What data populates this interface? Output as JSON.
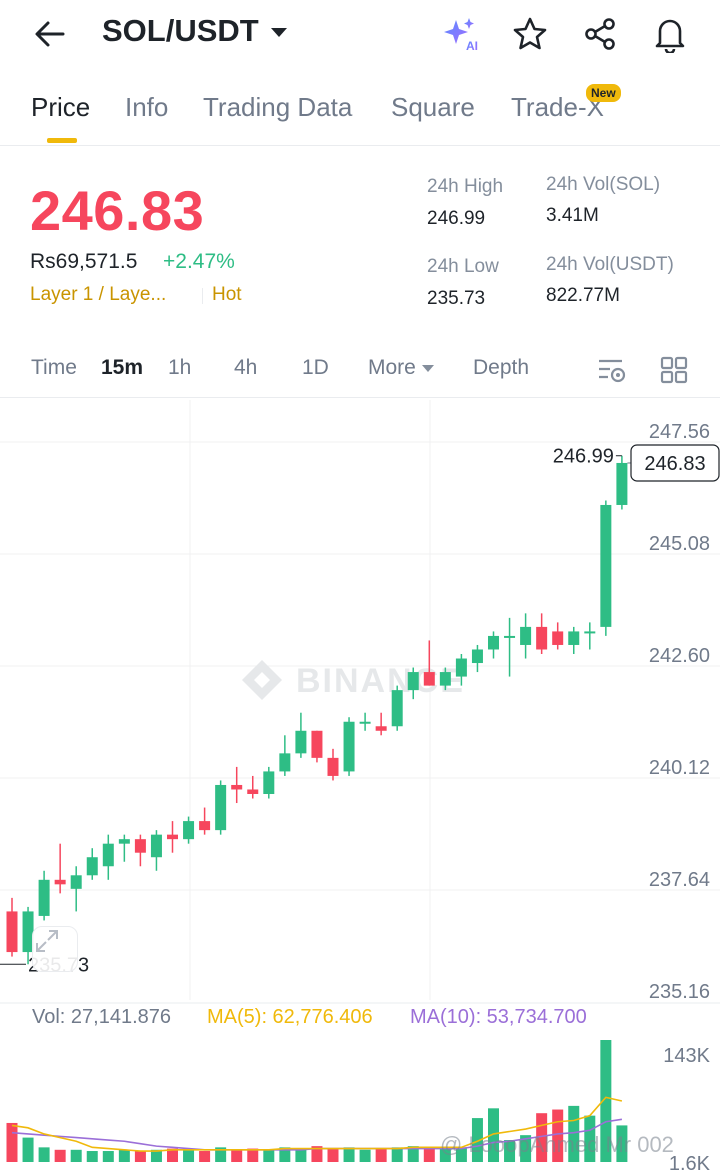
{
  "header": {
    "pair": "SOL/USDT",
    "icons": [
      "back-arrow-icon",
      "ai-sparkle-icon",
      "star-icon",
      "share-icon",
      "bell-icon"
    ]
  },
  "tabs": [
    {
      "label": "Price",
      "active": true
    },
    {
      "label": "Info"
    },
    {
      "label": "Trading Data"
    },
    {
      "label": "Square"
    },
    {
      "label": "Trade-X",
      "badge": "New"
    }
  ],
  "ticker": {
    "last_price": "246.83",
    "fiat_price": "Rs69,571.5",
    "change_pct": "+2.47%",
    "tag": "Layer 1 / Laye...",
    "hot": "Hot",
    "high_label": "24h High",
    "high": "246.99",
    "low_label": "24h Low",
    "low": "235.73",
    "vol_base_label": "24h Vol(SOL)",
    "vol_base": "3.41M",
    "vol_quote_label": "24h Vol(USDT)",
    "vol_quote": "822.77M"
  },
  "intervals": {
    "items": [
      "Time",
      "15m",
      "1h",
      "4h",
      "1D"
    ],
    "active": "15m",
    "more": "More",
    "depth": "Depth"
  },
  "volume_header": {
    "vol": "Vol: 27,141.876",
    "ma5": "MA(5): 62,776.406",
    "ma10": "MA(10): 53,734.700"
  },
  "watermark": {
    "brand": "BINANCE",
    "user": "@ LooopAhmed Mr 002"
  },
  "colors": {
    "up": "#2ebd85",
    "down": "#f6465d",
    "accent": "#f0b90b",
    "ma5": "#f0b90b",
    "ma10": "#9b6fd8"
  },
  "chart_data": {
    "type": "candlestick",
    "interval": "15m",
    "y_axis_ticks": [
      "247.56",
      "245.08",
      "242.60",
      "240.12",
      "237.64",
      "235.16"
    ],
    "ylim": [
      235.16,
      247.56
    ],
    "last_price_label": "246.83",
    "high_marker": "246.99",
    "low_marker": "235.73",
    "volume_axis_tick": "143K",
    "volume_axis_tick_low": "1.6K",
    "candles": [
      {
        "o": 236.9,
        "h": 237.2,
        "l": 235.9,
        "c": 236.0
      },
      {
        "o": 236.0,
        "h": 237.0,
        "l": 235.73,
        "c": 236.9
      },
      {
        "o": 236.8,
        "h": 237.8,
        "l": 236.7,
        "c": 237.6
      },
      {
        "o": 237.6,
        "h": 238.4,
        "l": 237.3,
        "c": 237.5
      },
      {
        "o": 237.4,
        "h": 237.9,
        "l": 236.9,
        "c": 237.7
      },
      {
        "o": 237.7,
        "h": 238.3,
        "l": 237.6,
        "c": 238.1
      },
      {
        "o": 237.9,
        "h": 238.6,
        "l": 237.6,
        "c": 238.4
      },
      {
        "o": 238.4,
        "h": 238.6,
        "l": 238.0,
        "c": 238.5
      },
      {
        "o": 238.5,
        "h": 238.6,
        "l": 237.9,
        "c": 238.2
      },
      {
        "o": 238.1,
        "h": 238.7,
        "l": 237.8,
        "c": 238.6
      },
      {
        "o": 238.6,
        "h": 238.9,
        "l": 238.2,
        "c": 238.5
      },
      {
        "o": 238.5,
        "h": 239.0,
        "l": 238.4,
        "c": 238.9
      },
      {
        "o": 238.9,
        "h": 239.2,
        "l": 238.6,
        "c": 238.7
      },
      {
        "o": 238.7,
        "h": 239.8,
        "l": 238.6,
        "c": 239.7
      },
      {
        "o": 239.7,
        "h": 240.1,
        "l": 239.3,
        "c": 239.6
      },
      {
        "o": 239.6,
        "h": 239.9,
        "l": 239.4,
        "c": 239.5
      },
      {
        "o": 239.5,
        "h": 240.1,
        "l": 239.4,
        "c": 240.0
      },
      {
        "o": 240.0,
        "h": 240.8,
        "l": 239.9,
        "c": 240.4
      },
      {
        "o": 240.4,
        "h": 241.3,
        "l": 240.3,
        "c": 240.9
      },
      {
        "o": 240.9,
        "h": 240.9,
        "l": 240.2,
        "c": 240.3
      },
      {
        "o": 240.3,
        "h": 240.5,
        "l": 239.8,
        "c": 239.9
      },
      {
        "o": 240.0,
        "h": 241.2,
        "l": 239.9,
        "c": 241.1
      },
      {
        "o": 241.1,
        "h": 241.3,
        "l": 240.9,
        "c": 241.1
      },
      {
        "o": 241.0,
        "h": 241.3,
        "l": 240.8,
        "c": 240.9
      },
      {
        "o": 241.0,
        "h": 241.9,
        "l": 240.9,
        "c": 241.8
      },
      {
        "o": 241.8,
        "h": 242.3,
        "l": 241.6,
        "c": 242.2
      },
      {
        "o": 242.2,
        "h": 242.9,
        "l": 241.9,
        "c": 241.9
      },
      {
        "o": 241.9,
        "h": 242.3,
        "l": 241.8,
        "c": 242.2
      },
      {
        "o": 242.1,
        "h": 242.6,
        "l": 241.9,
        "c": 242.5
      },
      {
        "o": 242.4,
        "h": 242.8,
        "l": 242.2,
        "c": 242.7
      },
      {
        "o": 242.7,
        "h": 243.1,
        "l": 242.5,
        "c": 243.0
      },
      {
        "o": 243.0,
        "h": 243.4,
        "l": 242.1,
        "c": 243.0
      },
      {
        "o": 242.8,
        "h": 243.5,
        "l": 242.5,
        "c": 243.2
      },
      {
        "o": 243.2,
        "h": 243.5,
        "l": 242.6,
        "c": 242.7
      },
      {
        "o": 243.1,
        "h": 243.3,
        "l": 242.7,
        "c": 242.8
      },
      {
        "o": 242.8,
        "h": 243.2,
        "l": 242.6,
        "c": 243.1
      },
      {
        "o": 243.1,
        "h": 243.3,
        "l": 242.7,
        "c": 243.1
      },
      {
        "o": 243.2,
        "h": 246.0,
        "l": 243.0,
        "c": 245.9
      },
      {
        "o": 245.9,
        "h": 246.99,
        "l": 245.8,
        "c": 246.83
      }
    ],
    "volumes": [
      32,
      20,
      12,
      10,
      10,
      9,
      9,
      10,
      9,
      10,
      11,
      10,
      9,
      12,
      10,
      11,
      10,
      12,
      11,
      13,
      11,
      12,
      10,
      11,
      12,
      13,
      12,
      11,
      12,
      36,
      44,
      18,
      22,
      40,
      43,
      46,
      38,
      100,
      30
    ],
    "ma5": [
      30,
      28,
      23,
      20,
      17,
      12,
      11,
      10,
      9,
      9,
      10,
      10,
      10,
      10,
      10,
      10,
      10,
      11,
      11,
      11,
      11,
      11,
      11,
      11,
      11,
      12,
      12,
      12,
      12,
      17,
      23,
      25,
      27,
      30,
      33,
      34,
      38,
      53,
      50
    ],
    "ma10": [
      24,
      23,
      22,
      21,
      20,
      19,
      18,
      17,
      15,
      13,
      12,
      11,
      10,
      10,
      10,
      10,
      10,
      10,
      10,
      11,
      11,
      11,
      11,
      11,
      11,
      11,
      11,
      11,
      11,
      13,
      16,
      17,
      19,
      21,
      23,
      24,
      26,
      33,
      35
    ]
  }
}
